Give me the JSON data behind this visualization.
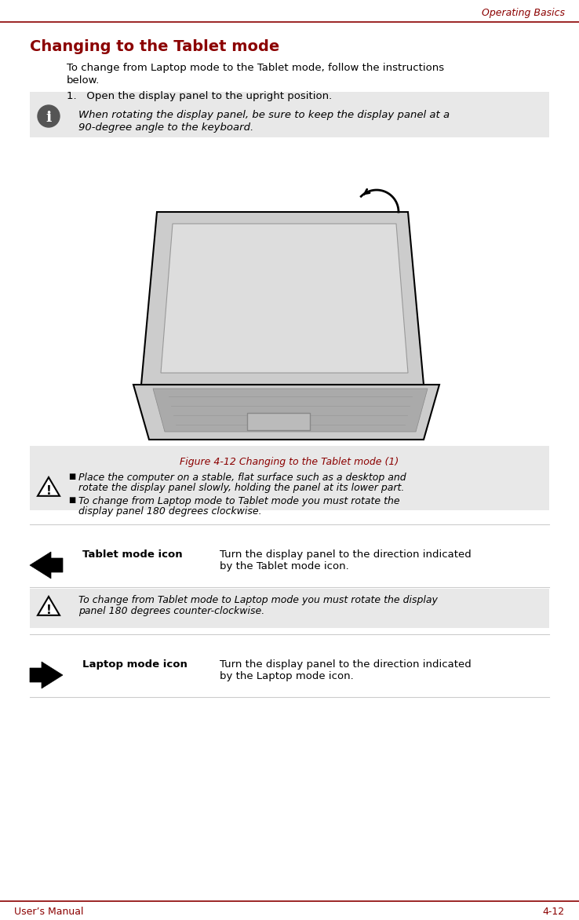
{
  "page_title_right": "Operating Basics",
  "section_title": "Changing to the Tablet mode",
  "intro_text": "To change from Laptop mode to the Tablet mode, follow the instructions below.",
  "step1": "1. Open the display panel to the upright position.",
  "info_box_text": "When rotating the display panel, be sure to keep the display panel at a\n90-degree angle to the keyboard.",
  "figure_caption": "Figure 4-12 Changing to the Tablet mode (1)",
  "warning_bullets": [
    "Place the computer on a stable, flat surface such as a desktop and rotate the display panel slowly, holding the panel at its lower part.",
    "To change from Laptop mode to Tablet mode you must rotate the display panel 180 degrees clockwise."
  ],
  "tablet_icon_label": "Tablet mode icon",
  "tablet_icon_text": "Turn the display panel to the direction indicated\nby the Tablet mode icon.",
  "warning2_text": "To change from Tablet mode to Laptop mode you must rotate the display\npanel 180 degrees counter-clockwise.",
  "laptop_icon_label": "Laptop mode icon",
  "laptop_icon_text": "Turn the display panel to the direction indicated\nby the Laptop mode icon.",
  "footer_left": "User’s Manual",
  "footer_right": "4-12",
  "dark_red": "#8B0000",
  "light_gray_bg": "#E8E8E8",
  "black": "#000000",
  "white": "#FFFFFF",
  "top_line_color": "#8B0000",
  "bottom_line_color": "#8B0000"
}
